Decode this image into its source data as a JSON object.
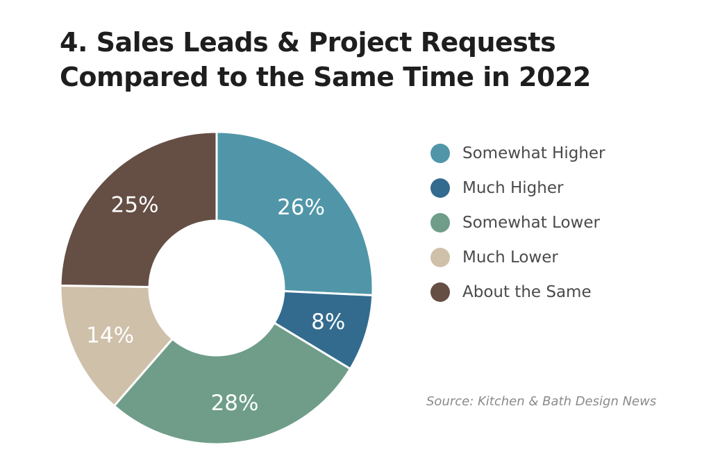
{
  "title": {
    "line1": "4. Sales Leads & Project Requests",
    "line2": "Compared to the Same Time in 2022"
  },
  "source": "Source: Kitchen & Bath Design News",
  "chart_data": {
    "type": "pie",
    "donut": true,
    "title": "4. Sales Leads & Project Requests Compared to the Same Time in 2022",
    "legend_position": "right",
    "slices": [
      {
        "name": "Somewhat Higher",
        "value": 26,
        "label": "26%",
        "color": "#5096a8"
      },
      {
        "name": "Much Higher",
        "value": 8,
        "label": "8%",
        "color": "#336b8f"
      },
      {
        "name": "Somewhat Lower",
        "value": 28,
        "label": "28%",
        "color": "#6f9d8a"
      },
      {
        "name": "Much Lower",
        "value": 14,
        "label": "14%",
        "color": "#cfc0aa"
      },
      {
        "name": "About the Same",
        "value": 25,
        "label": "25%",
        "color": "#654e44"
      }
    ]
  }
}
